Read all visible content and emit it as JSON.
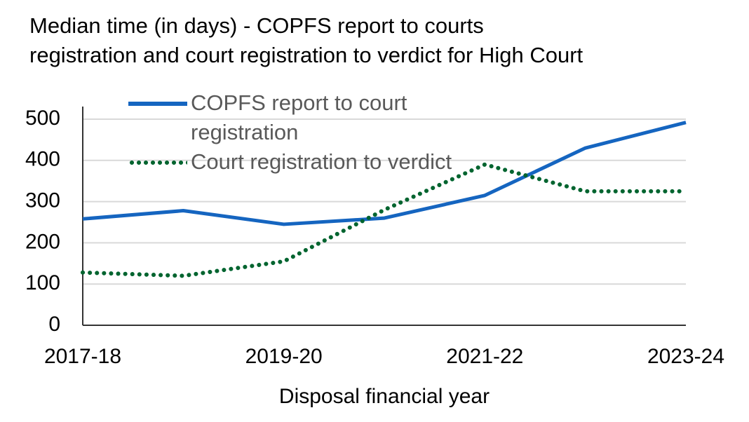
{
  "chart_data": {
    "type": "line",
    "title": "Median time (in days) - COPFS report to courts registration and court registration to verdict for High Court",
    "x_label": "Disposal financial year",
    "categories": [
      "2017-18",
      null,
      "2019-20",
      null,
      "2021-22",
      null,
      "2023-24"
    ],
    "series": [
      {
        "name": "COPFS report to court registration",
        "color": "#1565c0",
        "style": "solid",
        "values": [
          258,
          278,
          245,
          260,
          315,
          430,
          492
        ]
      },
      {
        "name": "Court registration to verdict",
        "color": "#00642f",
        "style": "dotted",
        "values": [
          128,
          120,
          155,
          280,
          390,
          325,
          325
        ]
      }
    ],
    "ylim": [
      0,
      500
    ],
    "yticks": [
      0,
      100,
      200,
      300,
      400,
      500
    ],
    "grid": true,
    "legend": "top-left"
  }
}
